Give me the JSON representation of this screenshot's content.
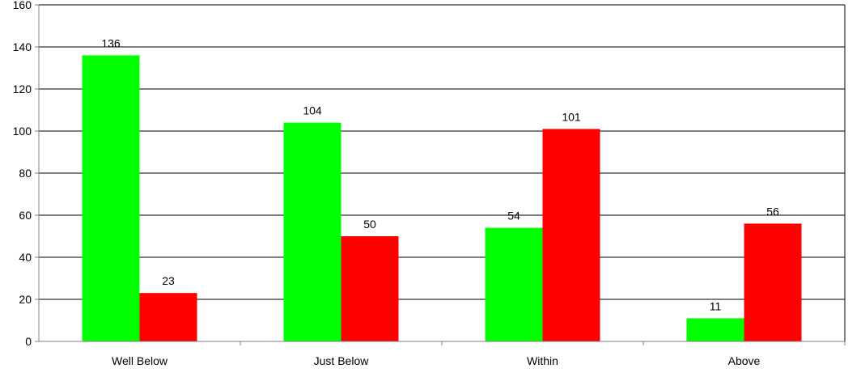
{
  "chart_data": {
    "type": "bar",
    "categories": [
      "Well Below",
      "Just Below",
      "Within",
      "Above"
    ],
    "series": [
      {
        "values": [
          136,
          104,
          54,
          11
        ],
        "color": "#00ff00"
      },
      {
        "values": [
          23,
          50,
          101,
          56
        ],
        "color": "#ff0000"
      }
    ],
    "title": "",
    "xlabel": "",
    "ylabel": "",
    "ylim": [
      0,
      160
    ],
    "yticks": [
      0,
      20,
      40,
      60,
      80,
      100,
      120,
      140,
      160
    ],
    "grid": true,
    "legend": "none",
    "gridline_color": "#000000",
    "axis_color": "#808080"
  }
}
